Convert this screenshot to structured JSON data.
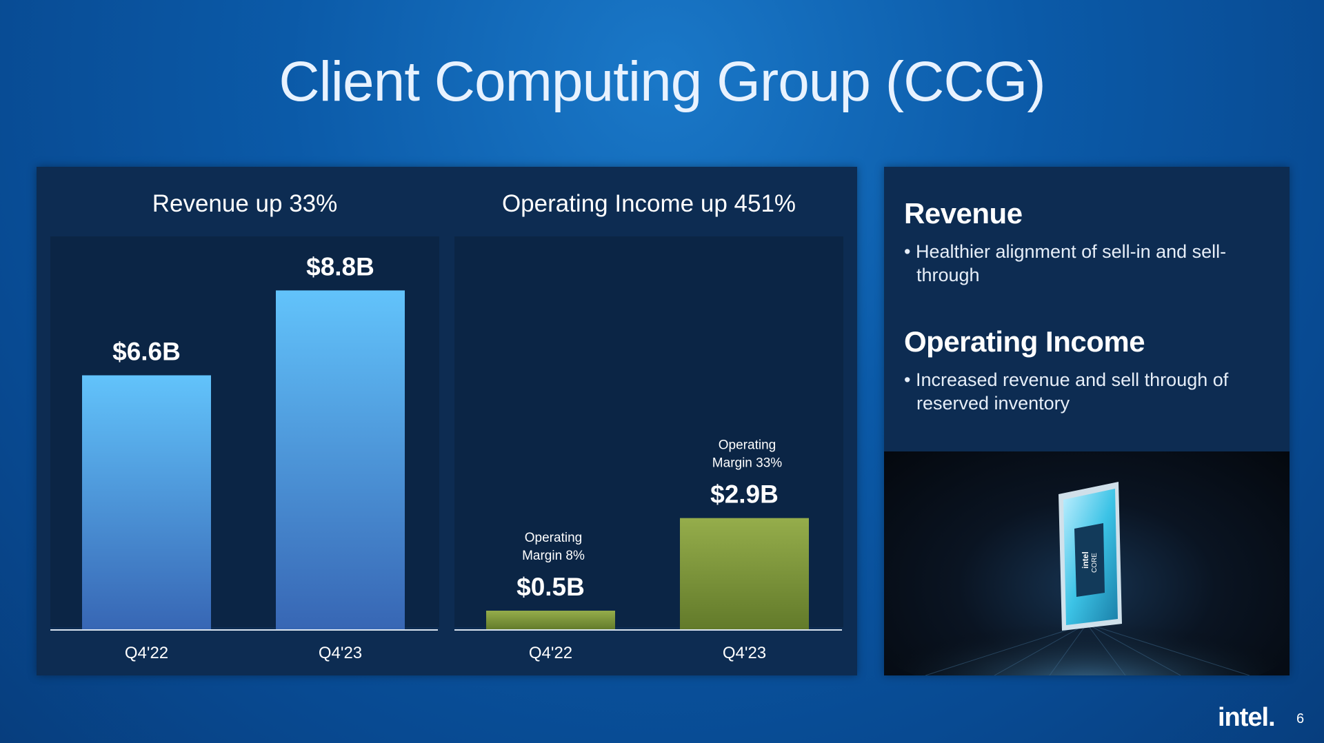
{
  "title": "Client Computing Group (CCG)",
  "colors": {
    "revenue_bar_top": "#62c3fb",
    "revenue_bar_bottom": "#3766b4",
    "income_bar_top": "#95ad4b",
    "income_bar_bottom": "#627a2a",
    "panel": "#0d2c52"
  },
  "chart_data": [
    {
      "type": "bar",
      "title": "Revenue up 33%",
      "categories": [
        "Q4'22",
        "Q4'23"
      ],
      "values": [
        6.6,
        8.8
      ],
      "value_labels": [
        "$6.6B",
        "$8.8B"
      ],
      "unit": "$B",
      "ylim": [
        0,
        10.2
      ]
    },
    {
      "type": "bar",
      "title": "Operating Income up 451%",
      "categories": [
        "Q4'22",
        "Q4'23"
      ],
      "values": [
        0.5,
        2.9
      ],
      "value_labels": [
        "$0.5B",
        "$2.9B"
      ],
      "annotations": [
        [
          "Operating",
          "Margin 8%"
        ],
        [
          "Operating",
          "Margin 33%"
        ]
      ],
      "unit": "$B",
      "ylim": [
        0,
        10.2
      ]
    }
  ],
  "side": {
    "revenue_title": "Revenue",
    "revenue_bullet": "• Healthier alignment of sell-in and sell-through",
    "income_title": "Operating Income",
    "income_bullet": "• Increased revenue and sell through of reserved inventory"
  },
  "photo": {
    "chip_brand": "intel",
    "chip_line": "CORE"
  },
  "footer": {
    "logo": "intel.",
    "page": "6"
  }
}
